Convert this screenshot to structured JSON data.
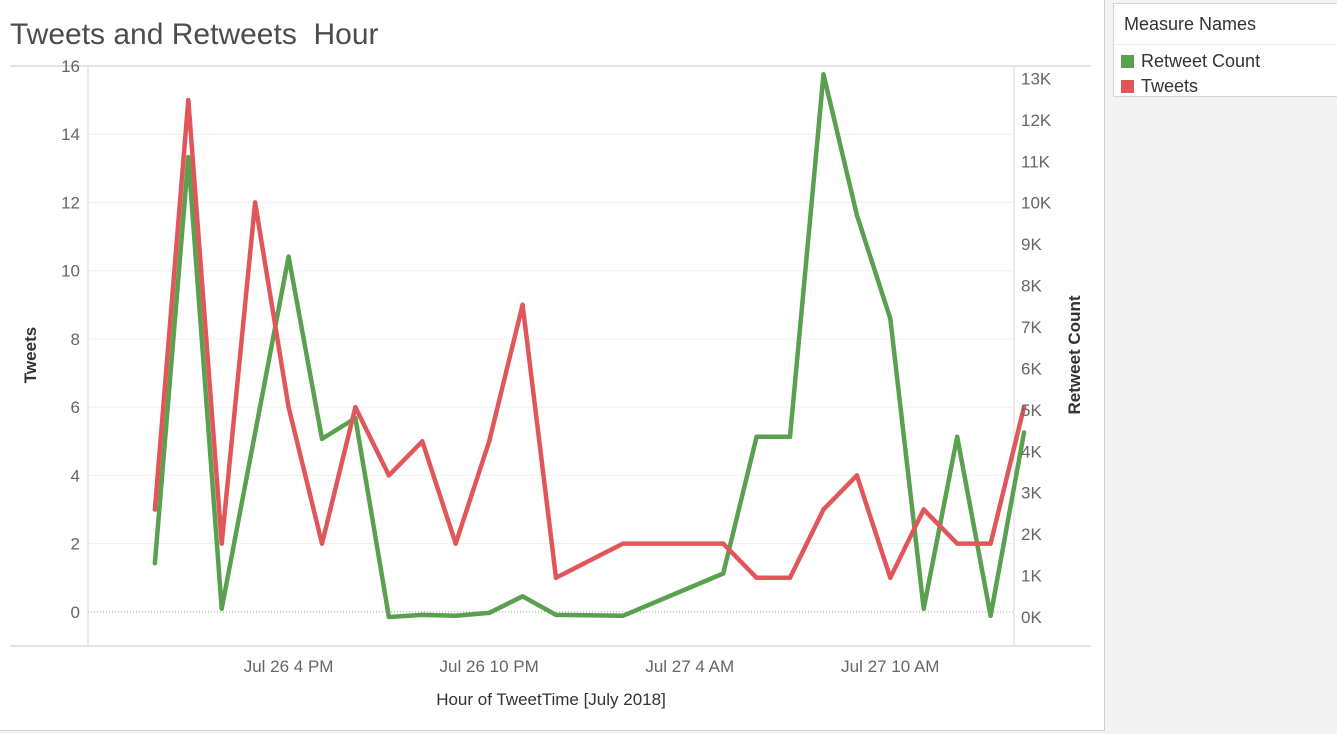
{
  "chart_data": {
    "type": "line",
    "title": "Tweets and Retweets  Hour",
    "xlabel": "Hour of TweetTime [July 2018]",
    "ylabel_left": "Tweets",
    "ylabel_right": "Retweet Count",
    "ylim_left": [
      -1,
      16
    ],
    "ylim_right": [
      -0.7,
      13.3
    ],
    "yticks_left": [
      0,
      2,
      4,
      6,
      8,
      10,
      12,
      14,
      16
    ],
    "yticks_right": [
      0,
      1,
      2,
      3,
      4,
      5,
      6,
      7,
      8,
      9,
      10,
      11,
      12,
      13
    ],
    "ytick_right_labels": [
      "0K",
      "1K",
      "2K",
      "3K",
      "4K",
      "5K",
      "6K",
      "7K",
      "8K",
      "9K",
      "10K",
      "11K",
      "12K",
      "13K"
    ],
    "xrange_hours": [
      10,
      37.7
    ],
    "xticks": [
      {
        "hour": 16,
        "label": "Jul 26 4 PM"
      },
      {
        "hour": 22,
        "label": "Jul 26 10 PM"
      },
      {
        "hour": 28,
        "label": "Jul 27 4 AM"
      },
      {
        "hour": 34,
        "label": "Jul 27 10 AM"
      }
    ],
    "grid": true,
    "legend_position": "right",
    "series": [
      {
        "name": "Retweet Count",
        "axis": "right",
        "color": "#59a14f",
        "points": [
          [
            12,
            1.3
          ],
          [
            13,
            11.1
          ],
          [
            14,
            0.2
          ],
          [
            16,
            8.7
          ],
          [
            17,
            4.3
          ],
          [
            18,
            4.8
          ],
          [
            19,
            0.0
          ],
          [
            20,
            0.05
          ],
          [
            21,
            0.03
          ],
          [
            22,
            0.1
          ],
          [
            23,
            0.5
          ],
          [
            24,
            0.05
          ],
          [
            26,
            0.03
          ],
          [
            29,
            1.05
          ],
          [
            30,
            4.35
          ],
          [
            31,
            4.35
          ],
          [
            32,
            13.1
          ],
          [
            33,
            9.7
          ],
          [
            34,
            7.2
          ],
          [
            35,
            0.2
          ],
          [
            36,
            4.35
          ],
          [
            37,
            0.03
          ],
          [
            38,
            4.45
          ]
        ]
      },
      {
        "name": "Tweets",
        "axis": "left",
        "color": "#e15759",
        "points": [
          [
            12,
            3
          ],
          [
            13,
            15
          ],
          [
            14,
            2
          ],
          [
            15,
            12
          ],
          [
            16,
            6
          ],
          [
            17,
            2
          ],
          [
            18,
            6
          ],
          [
            19,
            4
          ],
          [
            20,
            5
          ],
          [
            21,
            2
          ],
          [
            22,
            5
          ],
          [
            23,
            9
          ],
          [
            24,
            1
          ],
          [
            26,
            2
          ],
          [
            29,
            2
          ],
          [
            30,
            1
          ],
          [
            31,
            1
          ],
          [
            32,
            3
          ],
          [
            33,
            4
          ],
          [
            34,
            1
          ],
          [
            35,
            3
          ],
          [
            36,
            2
          ],
          [
            37,
            2
          ],
          [
            38,
            6
          ]
        ]
      }
    ]
  },
  "legend": {
    "title": "Measure Names",
    "items": [
      {
        "label": "Retweet Count",
        "color": "#59a14f"
      },
      {
        "label": "Tweets",
        "color": "#e15759"
      }
    ]
  }
}
